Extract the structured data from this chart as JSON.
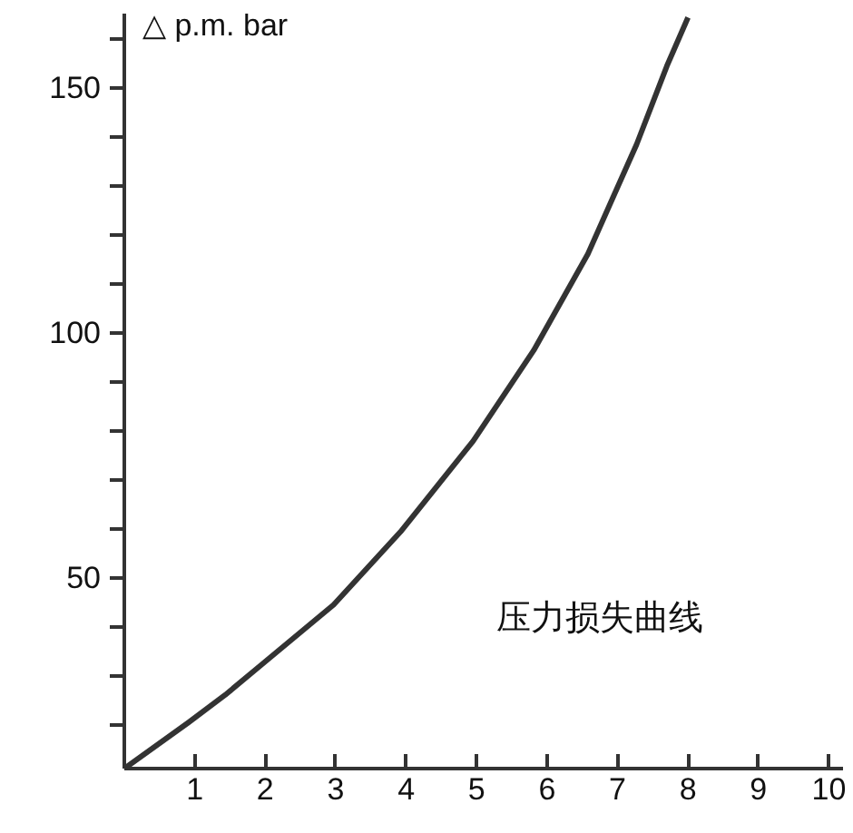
{
  "chart_data": {
    "type": "line",
    "ylabel": "△ p.m. bar",
    "annotations": [
      "压力损失曲线"
    ],
    "x": [
      0,
      0.91,
      1.43,
      1.94,
      2.97,
      3.92,
      4.95,
      5.81,
      6.58,
      6.92,
      7.27,
      7.7,
      8.0
    ],
    "series": [
      {
        "color": "#333333",
        "values": [
          11,
          20.4,
          26,
          32.1,
          44.4,
          59.3,
          77.8,
          96.3,
          116,
          127,
          138.3,
          154.3,
          164.2
        ]
      }
    ],
    "xlim": [
      0,
      10.2
    ],
    "ylim": [
      11,
      165
    ],
    "xticks": [
      1,
      2,
      3,
      4,
      5,
      6,
      7,
      8,
      9,
      10
    ],
    "yticks": [
      {
        "value": 20,
        "label": null
      },
      {
        "value": 30,
        "label": null
      },
      {
        "value": 40,
        "label": null
      },
      50,
      {
        "value": 60,
        "label": null
      },
      {
        "value": 70,
        "label": null
      },
      {
        "value": 80,
        "label": null
      },
      {
        "value": 90,
        "label": null
      },
      100,
      {
        "value": 110,
        "label": null
      },
      {
        "value": 120,
        "label": null
      },
      {
        "value": 130,
        "label": null
      },
      {
        "value": 140,
        "label": null
      },
      150,
      {
        "value": 160,
        "label": null
      }
    ],
    "grid": false,
    "marker": "none",
    "line_style": "solid"
  }
}
